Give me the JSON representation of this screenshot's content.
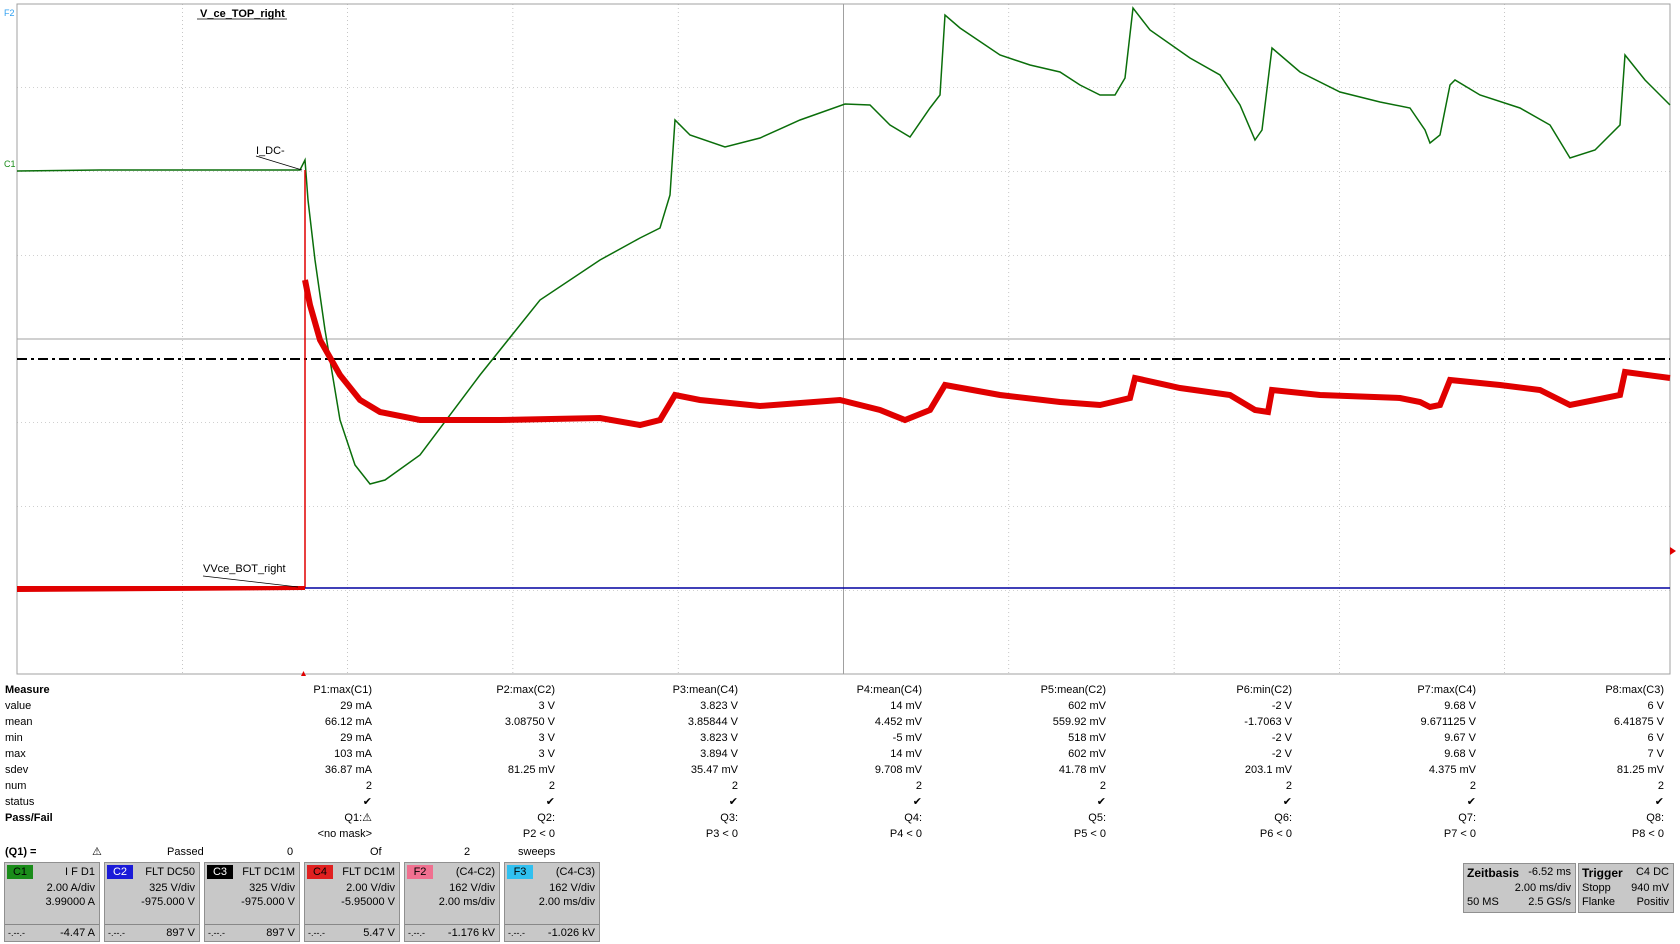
{
  "scope": {
    "trace_labels": {
      "vce_top": "V_ce_TOP_right",
      "idc": "I_DC-",
      "vce_bot": "VVce_BOT_right"
    },
    "axis_markers": {
      "f2": "F2",
      "c1": "C1"
    },
    "colors": {
      "green": "#0a6e0a",
      "red": "#e00000",
      "blue": "#0000a0",
      "dash": "#000000",
      "grid": "#a0a0a0"
    }
  },
  "measure": {
    "title": "Measure",
    "row_labels": [
      "value",
      "mean",
      "min",
      "max",
      "sdev",
      "num",
      "status"
    ],
    "passfail_label": "Pass/Fail",
    "columns": [
      {
        "header": "P1:max(C1)",
        "value": "29 mA",
        "mean": "66.12 mA",
        "min": "29 mA",
        "max": "103 mA",
        "sdev": "36.87 mA",
        "num": "2",
        "status": "✔",
        "q": "Q1:⚠",
        "cond": "<no mask>"
      },
      {
        "header": "P2:max(C2)",
        "value": "3 V",
        "mean": "3.08750 V",
        "min": "3 V",
        "max": "3 V",
        "sdev": "81.25 mV",
        "num": "2",
        "status": "✔",
        "q": "Q2:",
        "cond": "P2 < 0"
      },
      {
        "header": "P3:mean(C4)",
        "value": "3.823 V",
        "mean": "3.85844 V",
        "min": "3.823 V",
        "max": "3.894 V",
        "sdev": "35.47 mV",
        "num": "2",
        "status": "✔",
        "q": "Q3:",
        "cond": "P3 < 0"
      },
      {
        "header": "P4:mean(C4)",
        "value": "14 mV",
        "mean": "4.452 mV",
        "min": "-5 mV",
        "max": "14 mV",
        "sdev": "9.708 mV",
        "num": "2",
        "status": "✔",
        "q": "Q4:",
        "cond": "P4 < 0"
      },
      {
        "header": "P5:mean(C2)",
        "value": "602 mV",
        "mean": "559.92 mV",
        "min": "518 mV",
        "max": "602 mV",
        "sdev": "41.78 mV",
        "num": "2",
        "status": "✔",
        "q": "Q5:",
        "cond": "P5 < 0"
      },
      {
        "header": "P6:min(C2)",
        "value": "-2 V",
        "mean": "-1.7063 V",
        "min": "-2 V",
        "max": "-2 V",
        "sdev": "203.1 mV",
        "num": "2",
        "status": "✔",
        "q": "Q6:",
        "cond": "P6 < 0"
      },
      {
        "header": "P7:max(C4)",
        "value": "9.68 V",
        "mean": "9.671125 V",
        "min": "9.67 V",
        "max": "9.68 V",
        "sdev": "4.375 mV",
        "num": "2",
        "status": "✔",
        "q": "Q7:",
        "cond": "P7 < 0"
      },
      {
        "header": "P8:max(C3)",
        "value": "6 V",
        "mean": "6.41875 V",
        "min": "6 V",
        "max": "7 V",
        "sdev": "81.25 mV",
        "num": "2",
        "status": "✔",
        "q": "Q8:",
        "cond": "P8 < 0"
      }
    ]
  },
  "q1": {
    "label": "(Q1) =",
    "icon": "⚠",
    "passed": "Passed",
    "passed_n": "0",
    "of": "Of",
    "of_n": "2",
    "sweeps": "sweeps"
  },
  "channels": [
    {
      "tag": "C1",
      "color": "#1a8c1a",
      "hdr": "I F D1",
      "l1": "2.00 A/div",
      "l2": "3.99000 A",
      "bl": "-.--.-",
      "br": "-4.47 A"
    },
    {
      "tag": "C2",
      "color": "#1a1ad8",
      "hdr": "FLT DC50",
      "l1": "325 V/div",
      "l2": "-975.000 V",
      "bl": "-.--.-",
      "br": "897 V"
    },
    {
      "tag": "C3",
      "color": "#000000",
      "hdr": "FLT DC1M",
      "l1": "325 V/div",
      "l2": "-975.000 V",
      "bl": "-.--.-",
      "br": "897 V"
    },
    {
      "tag": "C4",
      "color": "#e02020",
      "hdr": "FLT DC1M",
      "l1": "2.00 V/div",
      "l2": "-5.95000 V",
      "bl": "-.--.-",
      "br": "5.47 V"
    },
    {
      "tag": "F2",
      "color": "#f07090",
      "hdr": "(C4-C2)",
      "l1": "162 V/div",
      "l2": "2.00 ms/div",
      "bl": "-.--.-",
      "br": "-1.176 kV"
    },
    {
      "tag": "F3",
      "color": "#30c0f0",
      "hdr": "(C4-C3)",
      "l1": "162 V/div",
      "l2": "2.00 ms/div",
      "bl": "-.--.-",
      "br": "-1.026 kV"
    }
  ],
  "timebase": {
    "title": "Zeitbasis",
    "offset": "-6.52 ms",
    "div": "2.00 ms/div",
    "rate_l": "50 MS",
    "rate_r": "2.5 GS/s"
  },
  "trigger": {
    "title": "Trigger",
    "src": "C4 DC",
    "mode": "Stopp",
    "level": "940 mV",
    "edge_l": "Flanke",
    "edge_r": "Positiv"
  }
}
